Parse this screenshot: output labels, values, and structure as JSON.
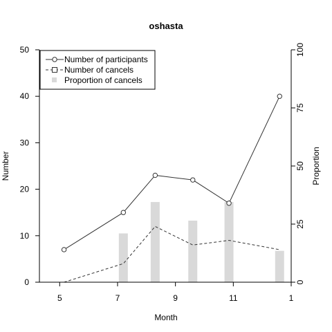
{
  "chart_data": {
    "type": "bar+line",
    "title": "oshasta",
    "xlabel": "Month",
    "ylabel_left": "Number",
    "ylabel_right": "Proportion",
    "x_ticks": [
      "5",
      "7",
      "9",
      "11",
      "1"
    ],
    "x_tick_positions": [
      5,
      7,
      9,
      11,
      13
    ],
    "xlim": [
      4.3,
      13.0
    ],
    "ylim_left": [
      0,
      50
    ],
    "ylim_right": [
      0,
      100
    ],
    "y_ticks_left": [
      0,
      10,
      20,
      30,
      40,
      50
    ],
    "y_ticks_right": [
      0,
      25,
      50,
      75,
      100
    ],
    "grid": false,
    "legend_position": "top-left",
    "series": [
      {
        "name": "Number of participants",
        "kind": "line",
        "axis": "left",
        "line_style": "solid",
        "marker": "circle",
        "x": [
          5.15,
          7.2,
          8.3,
          9.6,
          10.85,
          12.6
        ],
        "values": [
          7,
          15,
          23,
          22,
          17,
          40
        ]
      },
      {
        "name": "Number of cancels",
        "kind": "line",
        "axis": "left",
        "line_style": "dashed",
        "marker": "square",
        "x": [
          5.15,
          7.2,
          8.3,
          9.6,
          10.85,
          12.6
        ],
        "values": [
          0,
          4,
          12,
          8,
          9,
          7
        ]
      },
      {
        "name": "Proportion of cancels",
        "kind": "bar",
        "axis": "right",
        "color": "#d9d9d9",
        "x": [
          7.2,
          8.3,
          9.6,
          10.85,
          12.6
        ],
        "values": [
          21,
          34.5,
          26.5,
          34.5,
          13.5
        ]
      }
    ]
  }
}
